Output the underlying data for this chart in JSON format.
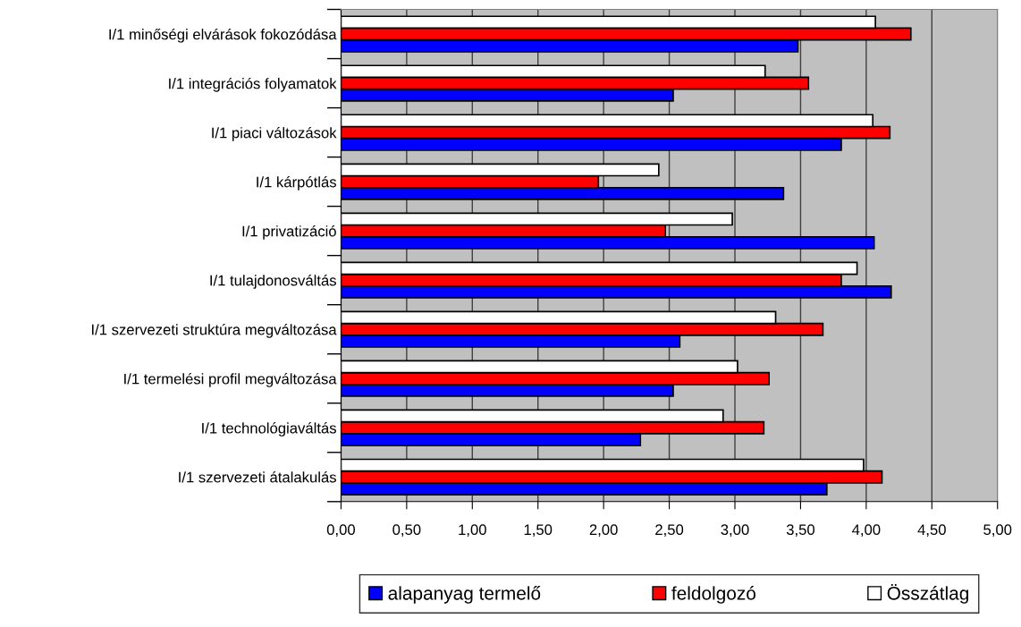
{
  "chart_data": {
    "type": "bar",
    "orientation": "horizontal",
    "grid": "x",
    "legend": "bottom",
    "categories": [
      "I/1 minőségi elvárások fokozódása",
      "I/1 integrációs folyamatok",
      "I/1 piaci változások",
      "I/1 kárpótlás",
      "I/1 privatizáció",
      "I/1 tulajdonosváltás",
      "I/1 szervezeti struktúra megváltozása",
      "I/1 termelési profil megváltozása",
      "I/1 technológiaváltás",
      "I/1 szervezeti átalakulás"
    ],
    "series": [
      {
        "name": "alapanyag termelő",
        "color": "#0000ff",
        "values": [
          3.48,
          2.53,
          3.81,
          3.37,
          4.06,
          4.19,
          2.58,
          2.53,
          2.28,
          3.7
        ]
      },
      {
        "name": "feldolgozó",
        "color": "#ff0000",
        "values": [
          4.34,
          3.56,
          4.18,
          1.96,
          2.47,
          3.81,
          3.67,
          3.26,
          3.22,
          4.12
        ]
      },
      {
        "name": "Összátlag",
        "color": "#ffffff",
        "values": [
          4.07,
          3.23,
          4.05,
          2.42,
          2.98,
          3.93,
          3.31,
          3.02,
          2.91,
          3.98
        ]
      }
    ],
    "xlim": [
      0,
      5
    ],
    "xticks": [
      {
        "value": 0,
        "label": "0,00"
      },
      {
        "value": 0.5,
        "label": "0,50"
      },
      {
        "value": 1,
        "label": "1,00"
      },
      {
        "value": 1.5,
        "label": "1,50"
      },
      {
        "value": 2,
        "label": "2,00"
      },
      {
        "value": 2.5,
        "label": "2,50"
      },
      {
        "value": 3,
        "label": "3,00"
      },
      {
        "value": 3.5,
        "label": "3,50"
      },
      {
        "value": 4,
        "label": "4,00"
      },
      {
        "value": 4.5,
        "label": "4,50"
      },
      {
        "value": 5,
        "label": "5,00"
      }
    ]
  }
}
